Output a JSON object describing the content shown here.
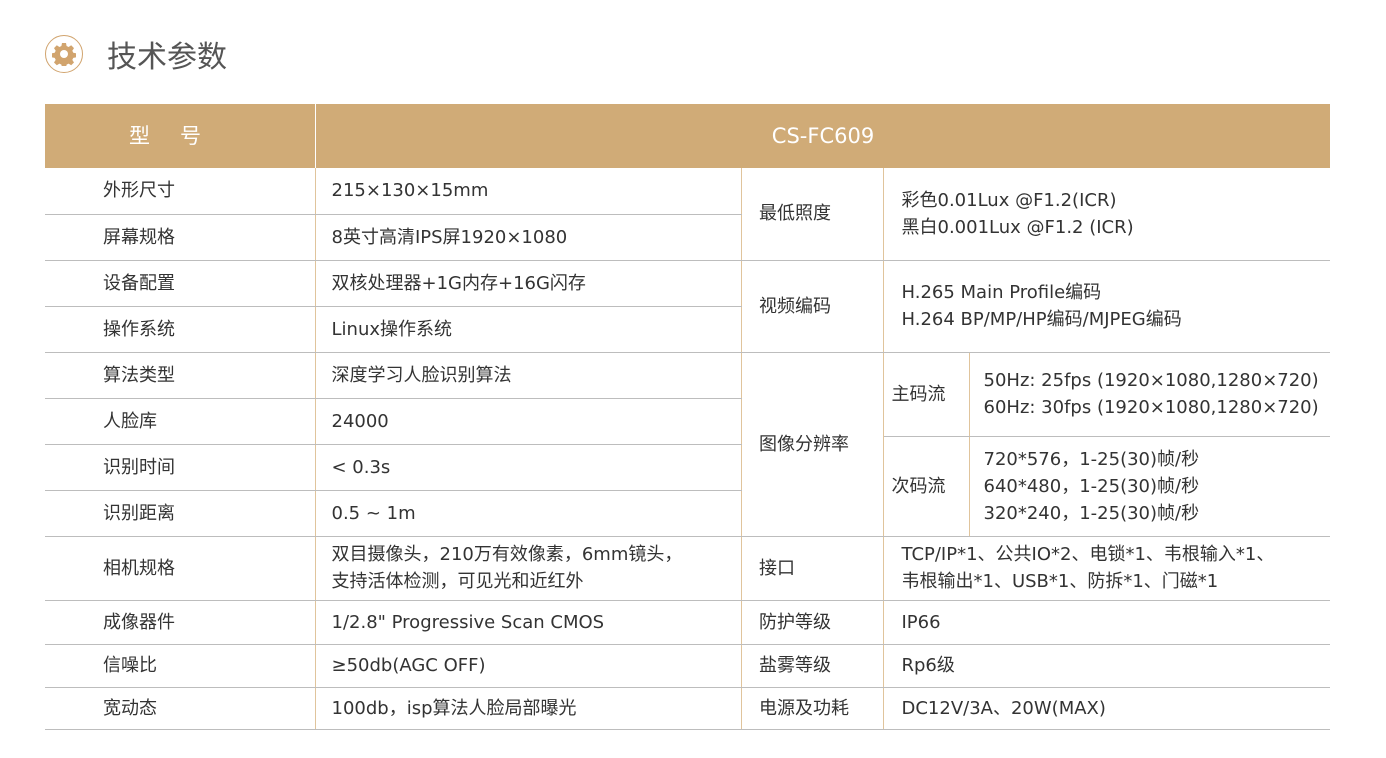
{
  "title": "技术参数",
  "icon": "gear-icon",
  "accent": "#d0ab77",
  "header": {
    "label": "型号",
    "model": "CS-FC609"
  },
  "left": [
    {
      "k": "外形尺寸",
      "v": [
        "215×130×15mm"
      ]
    },
    {
      "k": "屏幕规格",
      "v": [
        "8英寸高清IPS屏1920×1080"
      ]
    },
    {
      "k": "设备配置",
      "v": [
        "双核处理器+1G内存+16G闪存"
      ]
    },
    {
      "k": "操作系统",
      "v": [
        "Linux操作系统"
      ]
    },
    {
      "k": "算法类型",
      "v": [
        "深度学习人脸识别算法"
      ]
    },
    {
      "k": "人脸库",
      "v": [
        "24000"
      ]
    },
    {
      "k": "识别时间",
      "v": [
        "< 0.3s"
      ]
    },
    {
      "k": "识别距离",
      "v": [
        "0.5 ~ 1m"
      ]
    },
    {
      "k": "相机规格",
      "v": [
        "双目摄像头，210万有效像素，6mm镜头，",
        "支持活体检测，可见光和近红外"
      ]
    },
    {
      "k": "成像器件",
      "v": [
        "1/2.8\" Progressive Scan CMOS"
      ]
    },
    {
      "k": "信噪比",
      "v": [
        "≥50db(AGC OFF)"
      ]
    },
    {
      "k": "宽动态",
      "v": [
        "100db，isp算法人脸局部曝光"
      ]
    }
  ],
  "right": {
    "illum": {
      "k": "最低照度",
      "v": [
        "彩色0.01Lux @F1.2(ICR)",
        "黑白0.001Lux @F1.2 (ICR)"
      ]
    },
    "codec": {
      "k": "视频编码",
      "v": [
        "H.265 Main Profile编码",
        "H.264 BP/MP/HP编码/MJPEG编码"
      ]
    },
    "res": {
      "k": "图像分辨率",
      "main": {
        "k": "主码流",
        "v": [
          "50Hz: 25fps (1920×1080,1280×720)",
          "60Hz: 30fps (1920×1080,1280×720)"
        ]
      },
      "sub": {
        "k": "次码流",
        "v": [
          "720*576，1-25(30)帧/秒",
          "640*480，1-25(30)帧/秒",
          "320*240，1-25(30)帧/秒"
        ]
      }
    },
    "iface": {
      "k": "接口",
      "v": [
        "TCP/IP*1、公共IO*2、电锁*1、韦根输入*1、",
        "韦根输出*1、USB*1、防拆*1、门磁*1"
      ]
    },
    "ip": {
      "k": "防护等级",
      "v": [
        "IP66"
      ]
    },
    "salt": {
      "k": "盐雾等级",
      "v": [
        "Rp6级"
      ]
    },
    "power": {
      "k": "电源及功耗",
      "v": [
        "DC12V/3A、20W(MAX)"
      ]
    }
  }
}
